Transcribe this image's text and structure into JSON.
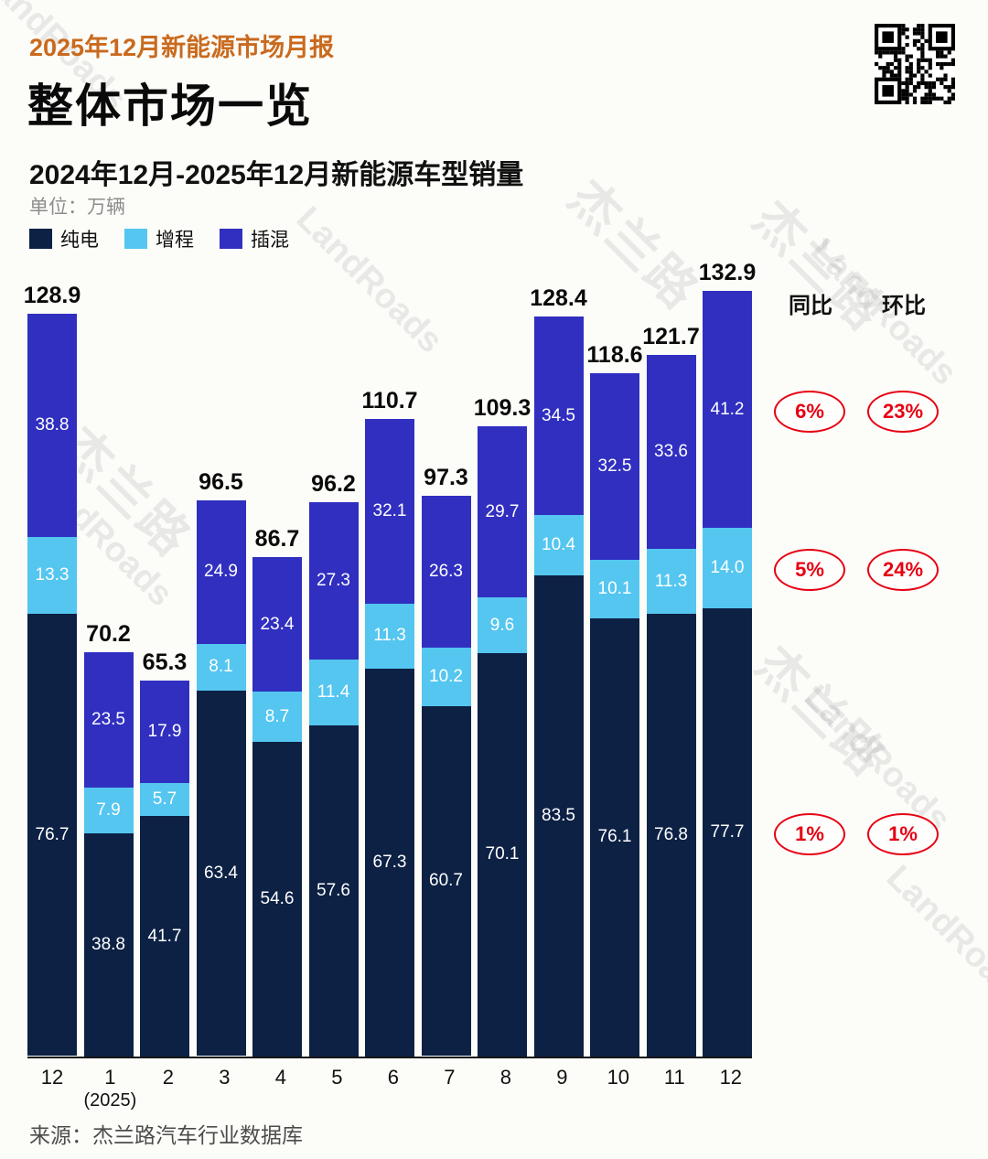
{
  "header": {
    "report_tag": "2025年12月新能源市场月报",
    "page_title": "整体市场一览"
  },
  "chart_data": {
    "type": "bar",
    "stacked": true,
    "title": "2024年12月-2025年12月新能源车型销量",
    "unit_label": "单位：万辆",
    "categories": [
      "12",
      "1",
      "2",
      "3",
      "4",
      "5",
      "6",
      "7",
      "8",
      "9",
      "10",
      "11",
      "12"
    ],
    "category_sublabels": [
      "",
      "(2025)",
      "",
      "",
      "",
      "",
      "",
      "",
      "",
      "",
      "",
      "",
      ""
    ],
    "series": [
      {
        "name": "纯电",
        "color": "#0d2145",
        "values": [
          76.7,
          38.8,
          41.7,
          63.4,
          54.6,
          57.6,
          67.3,
          60.7,
          70.1,
          83.5,
          76.1,
          76.8,
          77.7
        ]
      },
      {
        "name": "增程",
        "color": "#54c6f0",
        "values": [
          13.3,
          7.9,
          5.7,
          8.1,
          8.7,
          11.4,
          11.3,
          10.2,
          9.6,
          10.4,
          10.1,
          11.3,
          14.0
        ]
      },
      {
        "name": "插混",
        "color": "#302fc0",
        "values": [
          38.8,
          23.5,
          17.9,
          24.9,
          23.4,
          27.3,
          32.1,
          26.3,
          29.7,
          34.5,
          32.5,
          33.6,
          41.2
        ]
      }
    ],
    "totals": [
      128.9,
      70.2,
      65.3,
      96.5,
      86.7,
      96.2,
      110.7,
      97.3,
      109.3,
      128.4,
      118.6,
      121.7,
      132.9
    ],
    "ylabel": "万辆",
    "ylim": [
      0,
      140
    ],
    "legend_position": "top-left",
    "grid": false
  },
  "comparison": {
    "yoy_header": "同比",
    "mom_header": "环比",
    "rows": [
      {
        "segment": "插混",
        "yoy": "6%",
        "mom": "23%"
      },
      {
        "segment": "增程",
        "yoy": "5%",
        "mom": "24%"
      },
      {
        "segment": "纯电",
        "yoy": "1%",
        "mom": "1%"
      }
    ]
  },
  "footer": {
    "source": "来源：杰兰路汽车行业数据库"
  },
  "watermark": {
    "cn": "杰兰路",
    "en": "LandRoads"
  },
  "colors": {
    "accent_orange": "#c96a1e",
    "badge_red": "#e60012",
    "bev_navy": "#0d2145",
    "erev_lightblue": "#54c6f0",
    "phev_blue": "#302fc0"
  }
}
